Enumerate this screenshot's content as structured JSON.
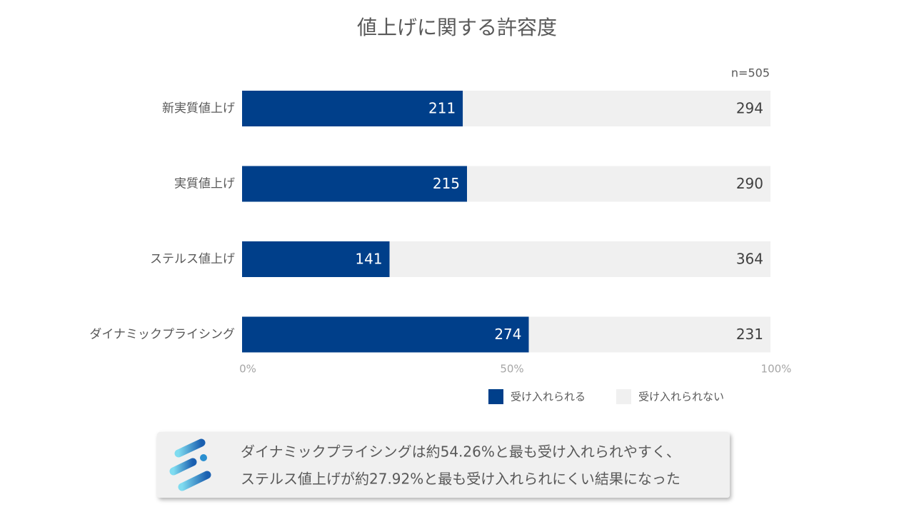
{
  "chart_data": {
    "type": "stacked-percent-bar",
    "orientation": "horizontal",
    "title": "値上げに関する許容度",
    "subtitle": "n=505",
    "categories": [
      "新実質値上げ",
      "実質値上げ",
      "ステルス値上げ",
      "ダイナミックプライシング"
    ],
    "series": [
      {
        "name": "受け入れられる",
        "color": "#003f8a",
        "values": [
          211,
          215,
          141,
          274
        ]
      },
      {
        "name": "受け入れられない",
        "color": "#f0f0f0",
        "values": [
          294,
          290,
          364,
          231
        ]
      }
    ],
    "xlim": [
      0,
      100
    ],
    "xticks": [
      {
        "value": 0,
        "label": "0%"
      },
      {
        "value": 50,
        "label": "50%"
      },
      {
        "value": 100,
        "label": "100%"
      }
    ],
    "legend": "bottom",
    "annotation": [
      "ダイナミックプライシングは約54.26%と最も受け入れられやすく、",
      "ステルス値上げが約27.92%と最も受け入れられにくい結果になった"
    ]
  }
}
